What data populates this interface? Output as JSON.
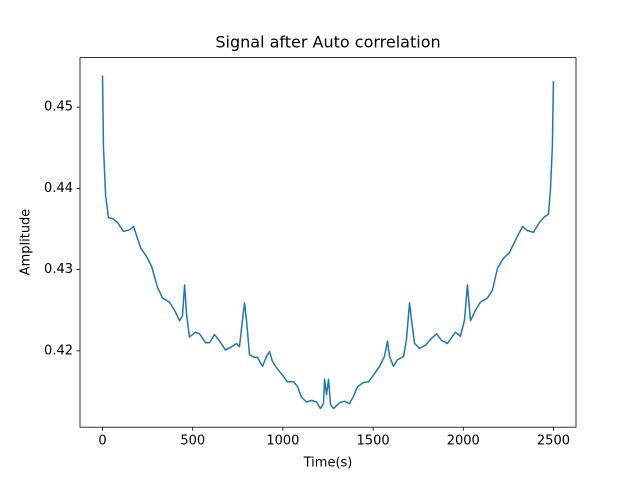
{
  "chart_data": {
    "type": "line",
    "title": "Signal after Auto correlation",
    "xlabel": "Time(s)",
    "ylabel": "Amplitude",
    "x": [
      0,
      5,
      17,
      33,
      55,
      83,
      116,
      150,
      172,
      211,
      244,
      272,
      305,
      333,
      371,
      399,
      427,
      443,
      455,
      466,
      482,
      515,
      538,
      571,
      593,
      621,
      649,
      682,
      715,
      743,
      759,
      776,
      787,
      798,
      815,
      843,
      859,
      887,
      909,
      926,
      942,
      965,
      998,
      1025,
      1059,
      1081,
      1103,
      1131,
      1159,
      1186,
      1208,
      1225,
      1231,
      1242,
      1253,
      1264,
      1280,
      1314,
      1341,
      1369,
      1391,
      1414,
      1447,
      1475,
      1502,
      1536,
      1563,
      1580,
      1591,
      1613,
      1635,
      1669,
      1685,
      1702,
      1713,
      1730,
      1757,
      1791,
      1818,
      1852,
      1879,
      1912,
      1934,
      1957,
      1984,
      2007,
      2023,
      2040,
      2068,
      2095,
      2134,
      2162,
      2190,
      2223,
      2256,
      2289,
      2328,
      2356,
      2389,
      2422,
      2450,
      2472,
      2483,
      2494,
      2500
    ],
    "series": [
      {
        "color": "#1f77b4",
        "values": [
          0.4539,
          0.4452,
          0.4391,
          0.4364,
          0.4363,
          0.4358,
          0.4347,
          0.4349,
          0.4353,
          0.4327,
          0.4316,
          0.4304,
          0.4278,
          0.4265,
          0.426,
          0.425,
          0.4237,
          0.4243,
          0.4281,
          0.4245,
          0.4217,
          0.4223,
          0.4221,
          0.421,
          0.421,
          0.422,
          0.4212,
          0.4201,
          0.4205,
          0.4209,
          0.4205,
          0.4238,
          0.4259,
          0.4238,
          0.4195,
          0.4192,
          0.4192,
          0.4181,
          0.4193,
          0.4199,
          0.4187,
          0.4179,
          0.417,
          0.4162,
          0.4162,
          0.4156,
          0.4143,
          0.4137,
          0.4139,
          0.4137,
          0.4129,
          0.4135,
          0.4165,
          0.4146,
          0.4165,
          0.4134,
          0.4129,
          0.4136,
          0.4138,
          0.4135,
          0.4144,
          0.4156,
          0.4161,
          0.4162,
          0.417,
          0.4181,
          0.4193,
          0.4212,
          0.4193,
          0.4181,
          0.4189,
          0.4193,
          0.4214,
          0.4259,
          0.4238,
          0.4209,
          0.4203,
          0.4207,
          0.4214,
          0.4221,
          0.4213,
          0.4209,
          0.4216,
          0.4223,
          0.4218,
          0.4238,
          0.4281,
          0.4237,
          0.425,
          0.426,
          0.4265,
          0.4275,
          0.4302,
          0.4314,
          0.4321,
          0.4336,
          0.4353,
          0.4348,
          0.4346,
          0.4358,
          0.4365,
          0.4368,
          0.4397,
          0.4452,
          0.4532
        ]
      }
    ],
    "xlim": [
      -125,
      2625
    ],
    "ylim": [
      0.4106,
      0.4561
    ],
    "xticks": [
      0,
      500,
      1000,
      1500,
      2000,
      2500
    ],
    "yticks": [
      0.42,
      0.43,
      0.44,
      0.45
    ],
    "grid": false
  }
}
